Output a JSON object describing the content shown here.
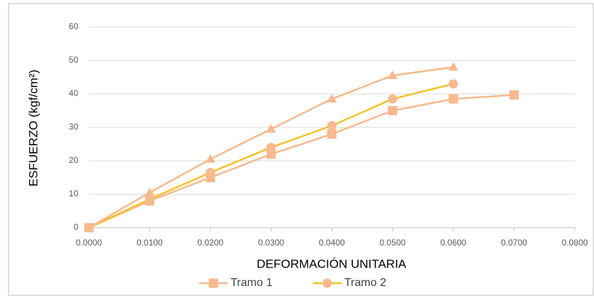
{
  "chart_data": {
    "type": "line",
    "xlabel": "DEFORMACIÓN UNITARIA",
    "ylabel": "ESFUERZO (kgf/cm²)",
    "x": [
      0,
      0.01,
      0.02,
      0.03,
      0.04,
      0.05,
      0.06,
      0.07
    ],
    "series": [
      {
        "name": "Tramo 1",
        "color": "#f7b98e",
        "marker": "square",
        "marker_color": "#f7b98e",
        "values": [
          0,
          8,
          15,
          22,
          28,
          35,
          38.5,
          39.7
        ]
      },
      {
        "name": "Tramo 2",
        "color": "#f5c12a",
        "marker": "circle",
        "marker_color": "#f7b98e",
        "values": [
          0,
          8.5,
          16.5,
          24,
          30.5,
          38.5,
          43,
          null
        ]
      },
      {
        "color": "#f7b98e",
        "marker": "triangle",
        "marker_color": "#f7b98e",
        "values": [
          0,
          10.5,
          20.5,
          29.5,
          38.5,
          45.5,
          48,
          null
        ]
      }
    ],
    "xlim": [
      0,
      0.08
    ],
    "xticks": [
      {
        "value": 0,
        "label": "0.0000"
      },
      {
        "value": 0.01,
        "label": "0.0100"
      },
      {
        "value": 0.02,
        "label": "0.0200"
      },
      {
        "value": 0.03,
        "label": "0.0300"
      },
      {
        "value": 0.04,
        "label": "0.0400"
      },
      {
        "value": 0.05,
        "label": "0.0500"
      },
      {
        "value": 0.06,
        "label": "0.0600"
      },
      {
        "value": 0.07,
        "label": "0.0700"
      },
      {
        "value": 0.08,
        "label": "0.0800"
      }
    ],
    "ylim": [
      0,
      60
    ],
    "yticks": [
      0,
      10,
      20,
      30,
      40,
      50,
      60
    ],
    "grid": true,
    "legend": "bottom"
  }
}
